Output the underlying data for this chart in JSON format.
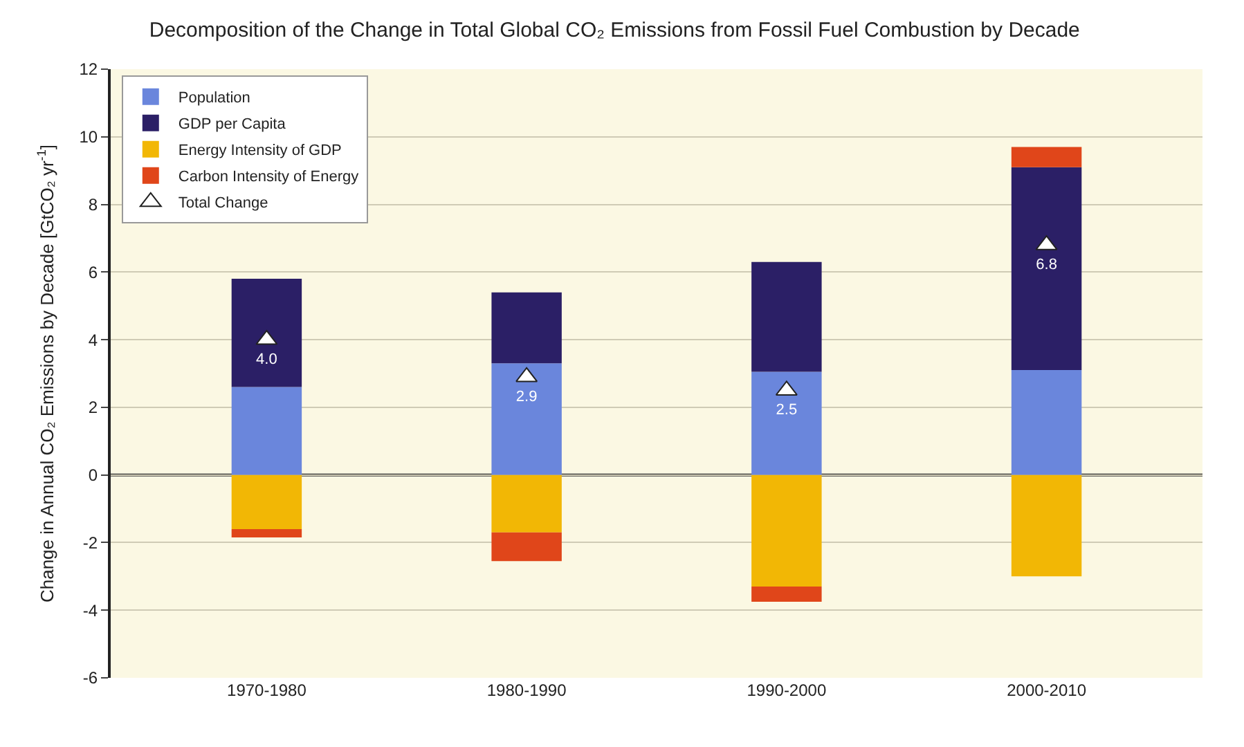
{
  "chart_data": {
    "type": "bar",
    "stacked": true,
    "title": "Decomposition of the Change in Total Global CO₂ Emissions from Fossil Fuel Combustion by Decade",
    "ylabel": "Change in Annual CO₂ Emissions by Decade [GtCO₂ yr$^{-1}$]",
    "categories": [
      "1970-1980",
      "1980-1990",
      "1990-2000",
      "2000-2010"
    ],
    "series": [
      {
        "name": "Population",
        "color": "#6a86dc",
        "values": [
          2.6,
          3.3,
          3.05,
          3.1
        ]
      },
      {
        "name": "GDP per Capita",
        "color": "#2b1f66",
        "values": [
          3.2,
          2.1,
          3.25,
          6.0
        ]
      },
      {
        "name": "Energy Intensity of GDP",
        "color": "#f2b705",
        "values": [
          -1.6,
          -1.7,
          -3.3,
          -3.0
        ]
      },
      {
        "name": "Carbon Intensity of Energy",
        "color": "#e0461a",
        "values": [
          -0.25,
          -0.85,
          -0.45,
          0.6
        ]
      },
      {
        "name": "Total Change",
        "type": "scatter",
        "marker": "triangle",
        "color": "#ffffff",
        "values": [
          4.0,
          2.9,
          2.5,
          6.8
        ],
        "value_labels": [
          "4.0",
          "2.9",
          "2.5",
          "6.8"
        ]
      }
    ],
    "ylim": [
      -6,
      12
    ],
    "yticks": [
      -6,
      -4,
      -2,
      0,
      2,
      4,
      6,
      8,
      10,
      12
    ],
    "ref_lines": [
      {
        "axis": "y",
        "value": 0,
        "color": "#333333"
      }
    ],
    "grid": "y",
    "legend": "top left"
  }
}
